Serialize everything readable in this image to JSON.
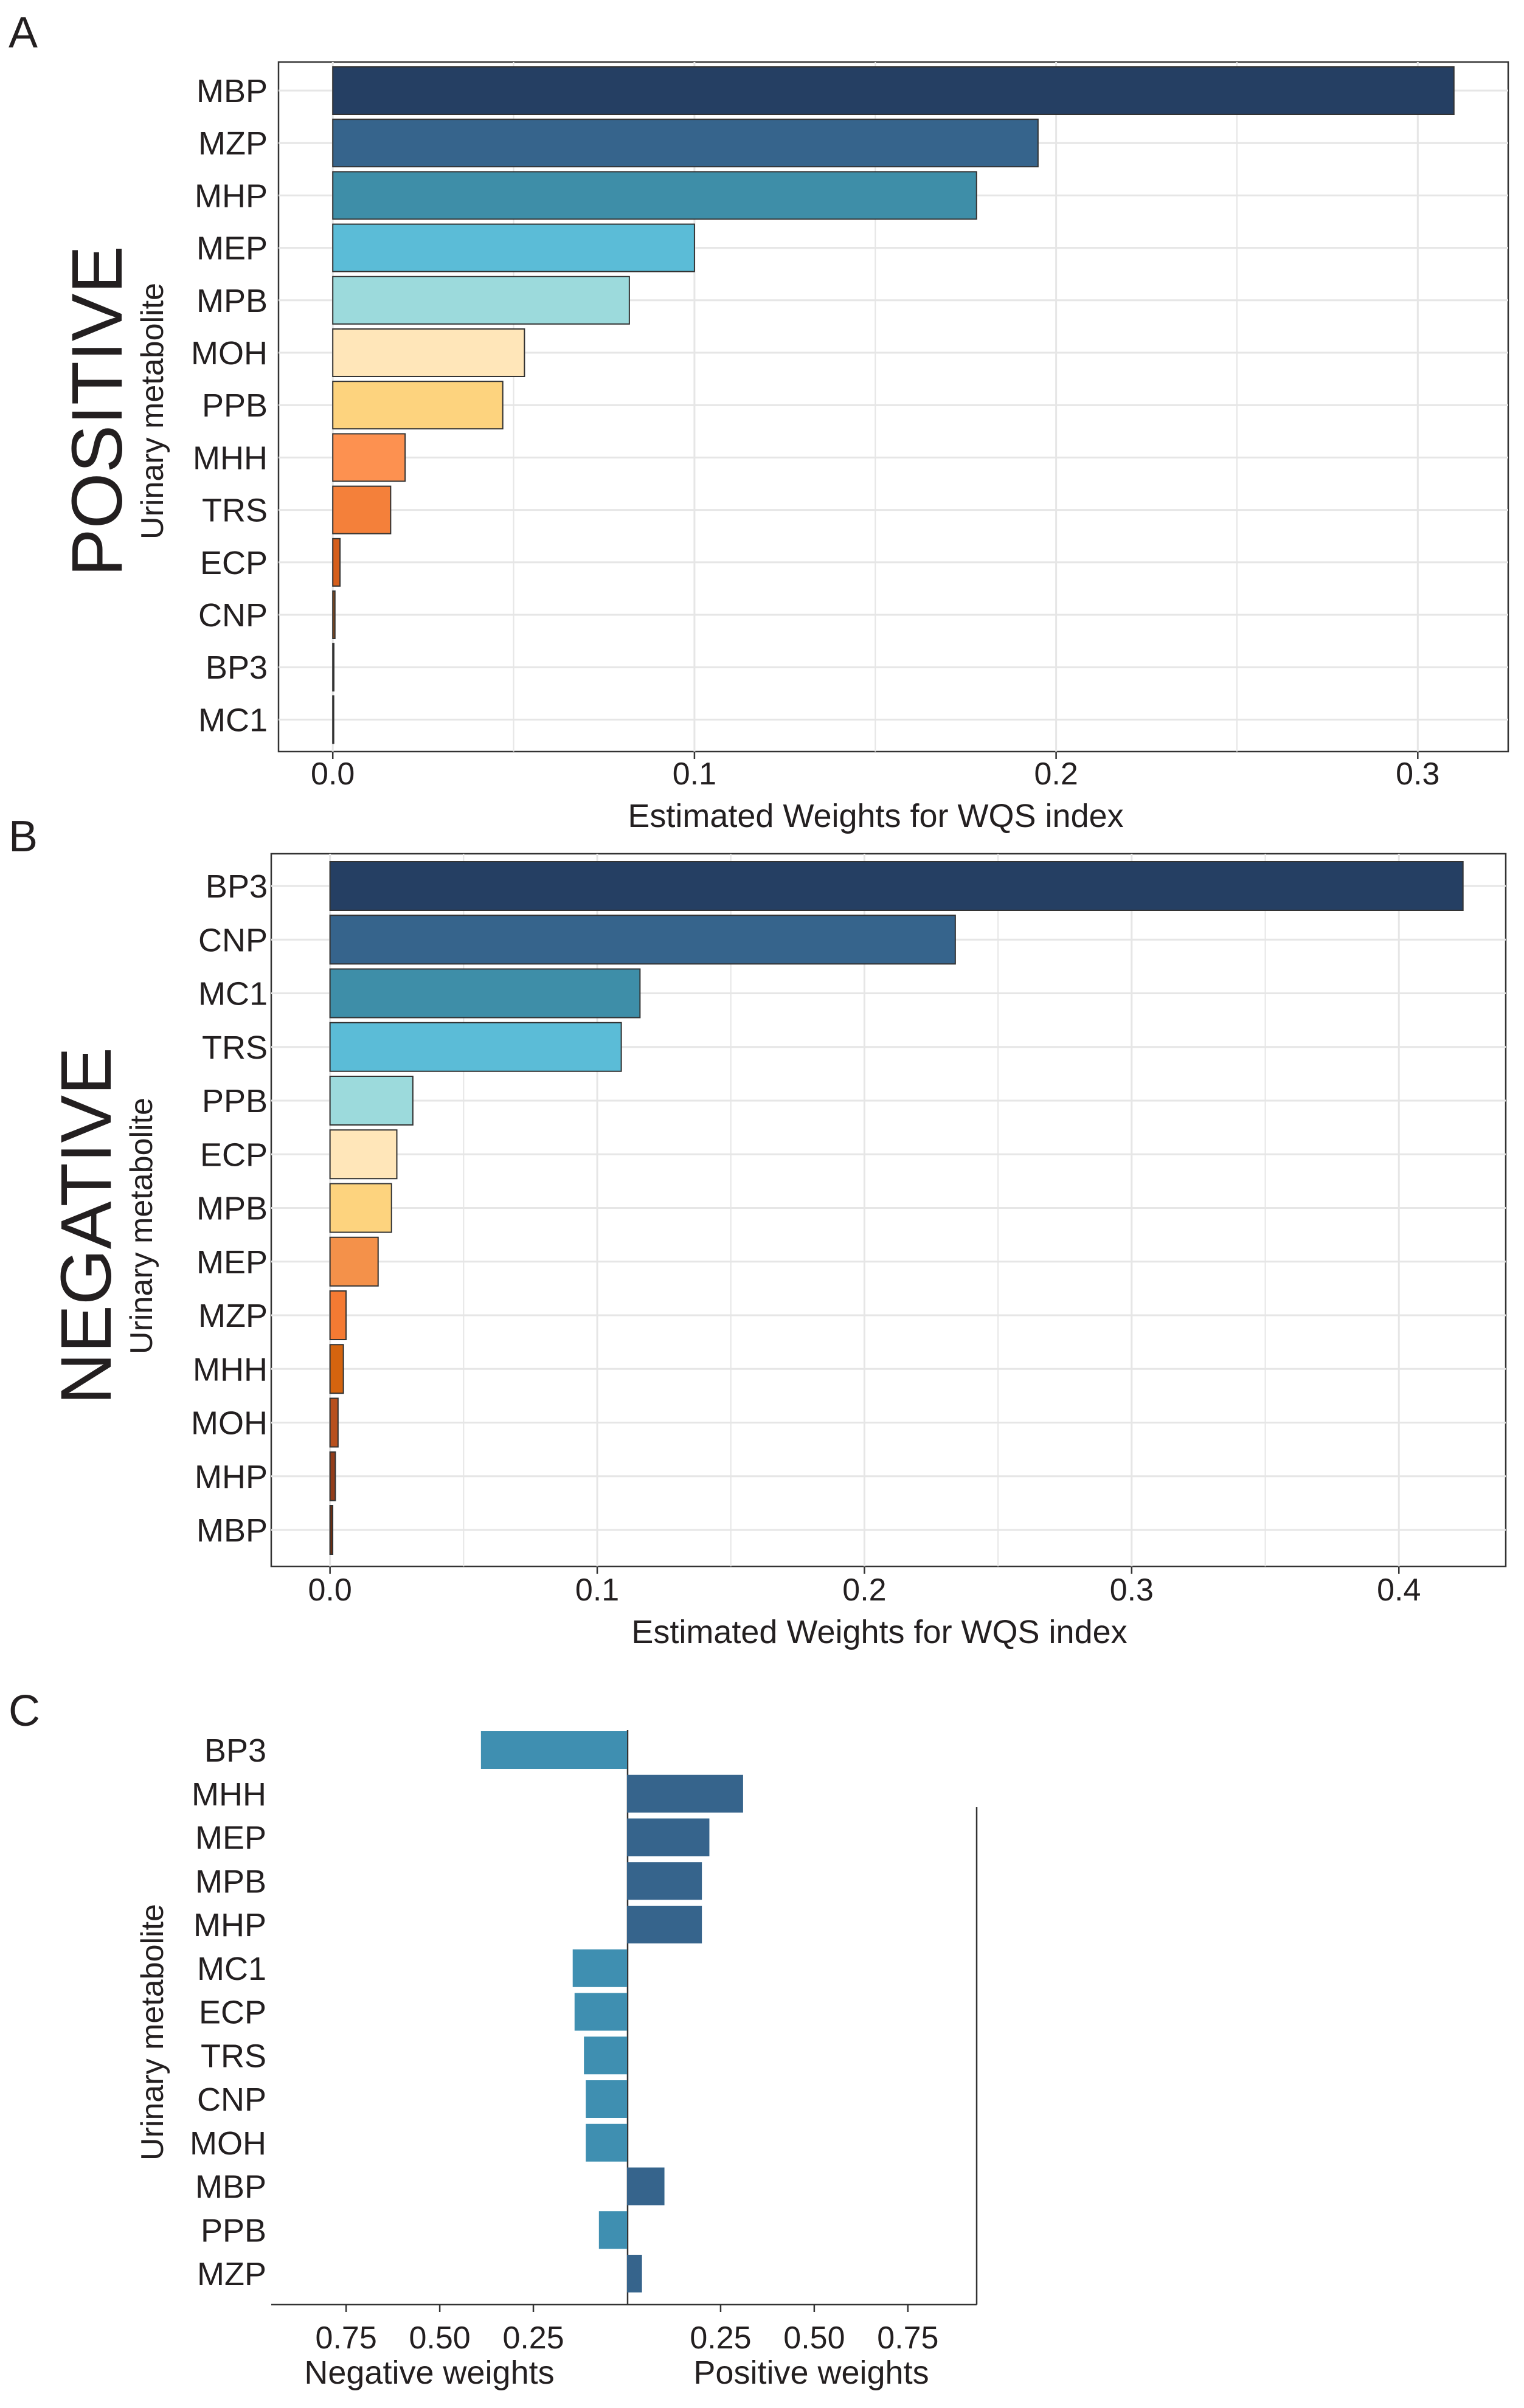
{
  "chart_data": [
    {
      "panel": "A",
      "type": "bar",
      "orientation": "horizontal",
      "side_title": "POSITIVE",
      "ylabel": "Urinary metabolite",
      "xlabel": "Estimated Weights for WQS index",
      "xlim": [
        -0.015,
        0.325
      ],
      "xticks": [
        0.0,
        0.1,
        0.2,
        0.3
      ],
      "xtick_labels": [
        "0.0",
        "0.1",
        "0.2",
        "0.3"
      ],
      "grid": true,
      "categories": [
        "MBP",
        "MZP",
        "MHP",
        "MEP",
        "MPB",
        "MOH",
        "PPB",
        "MHH",
        "TRS",
        "ECP",
        "CNP",
        "BP3",
        "MC1"
      ],
      "values": [
        0.31,
        0.195,
        0.178,
        0.1,
        0.082,
        0.053,
        0.047,
        0.02,
        0.016,
        0.002,
        0.0006,
        0.0003,
        0.0002
      ],
      "colors": [
        "#253f63",
        "#36648c",
        "#3e8ea8",
        "#5bbcd7",
        "#9cdadc",
        "#ffe6b9",
        "#fdd37e",
        "#fd9150",
        "#f4803a",
        "#d55e1b",
        "#8b4a1a",
        "#7a3a17",
        "#5e2b10"
      ]
    },
    {
      "panel": "B",
      "type": "bar",
      "orientation": "horizontal",
      "side_title": "NEGATIVE",
      "ylabel": "Urinary metabolite",
      "xlabel": "Estimated Weights for WQS index",
      "xlim": [
        -0.022,
        0.44
      ],
      "xticks": [
        0.0,
        0.1,
        0.2,
        0.3,
        0.4
      ],
      "xtick_labels": [
        "0.0",
        "0.1",
        "0.2",
        "0.3",
        "0.4"
      ],
      "grid": true,
      "categories": [
        "BP3",
        "CNP",
        "MC1",
        "TRS",
        "PPB",
        "ECP",
        "MPB",
        "MEP",
        "MZP",
        "MHH",
        "MOH",
        "MHP",
        "MBP"
      ],
      "values": [
        0.424,
        0.234,
        0.116,
        0.109,
        0.031,
        0.025,
        0.023,
        0.018,
        0.006,
        0.005,
        0.003,
        0.002,
        0.001
      ],
      "colors": [
        "#253f63",
        "#36648c",
        "#3e8ea8",
        "#5bbcd7",
        "#9cdadc",
        "#ffe6b9",
        "#fdd37e",
        "#f4914a",
        "#f47a33",
        "#d4640f",
        "#b8501e",
        "#933d1a",
        "#6b2d12"
      ]
    },
    {
      "panel": "C",
      "type": "bar",
      "orientation": "horizontal",
      "ylabel": "Urinary metabolite",
      "xlim": [
        -0.95,
        0.95
      ],
      "xticks": [
        -0.75,
        -0.5,
        -0.25,
        0.25,
        0.5,
        0.75
      ],
      "xtick_labels": [
        "0.75",
        "0.50",
        "0.25",
        "0.25",
        "0.50",
        "0.75"
      ],
      "xlabel_negative": "Negative weights",
      "xlabel_positive": "Positive weights",
      "grid": false,
      "categories": [
        "BP3",
        "MHH",
        "MEP",
        "MPB",
        "MHP",
        "MC1",
        "ECP",
        "TRS",
        "CNP",
        "MOH",
        "MBP",
        "PPB",
        "MZP"
      ],
      "values": [
        -0.39,
        0.31,
        0.22,
        0.2,
        0.2,
        -0.145,
        -0.14,
        -0.115,
        -0.11,
        -0.11,
        0.1,
        -0.075,
        0.04
      ],
      "positive_color": "#36648c",
      "negative_color": "#3f8fb1"
    }
  ],
  "panel_letters": [
    "A",
    "B",
    "C"
  ]
}
